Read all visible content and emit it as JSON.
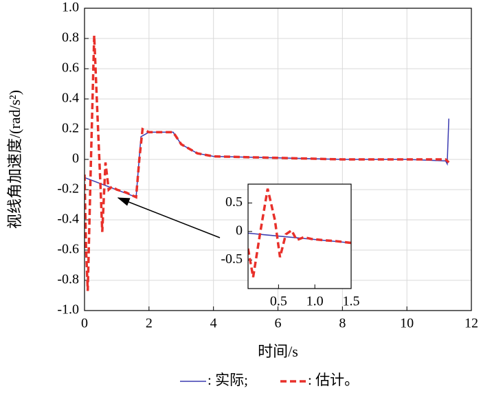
{
  "chart_data": [
    {
      "type": "line",
      "xlabel": "时间/s",
      "ylabel": "视线角加速度/(rad/s²)",
      "xlim": [
        0,
        12
      ],
      "ylim": [
        -1.0,
        1.0
      ],
      "xticks": [
        0,
        2,
        4,
        6,
        8,
        10,
        12
      ],
      "yticks": [
        {
          "value": -1.0,
          "label": "-1.0"
        },
        -0.8,
        -0.6,
        -0.4,
        -0.2,
        0,
        0.2,
        0.4,
        0.6,
        0.8,
        {
          "value": 1.0,
          "label": "1.0"
        }
      ],
      "grid": true,
      "legend": "bottom",
      "series": [
        {
          "name": ": 实际;",
          "color": "#3a3ab0",
          "style": "solid",
          "x": [
            0,
            1.6,
            1.75,
            2.0,
            2.75,
            3.0,
            3.5,
            4,
            6,
            8,
            10,
            11.2,
            11.25,
            11.3
          ],
          "values": [
            -0.12,
            -0.25,
            0.15,
            0.18,
            0.18,
            0.1,
            0.04,
            0.02,
            0.01,
            0.0,
            0.0,
            -0.01,
            -0.03,
            0.27
          ]
        },
        {
          "name": ": 估计。",
          "color": "#e8302a",
          "style": "dashed",
          "x": [
            0,
            0.05,
            0.1,
            0.2,
            0.3,
            0.4,
            0.5,
            0.55,
            0.65,
            0.75,
            0.85,
            1.0,
            1.3,
            1.6,
            1.7,
            1.8,
            2.0,
            2.75,
            3.0,
            3.5,
            4,
            6,
            8,
            10,
            11.2,
            11.3
          ],
          "values": [
            -0.1,
            -0.6,
            -0.87,
            0.0,
            0.82,
            0.3,
            -0.2,
            -0.48,
            -0.02,
            -0.2,
            -0.18,
            -0.2,
            -0.22,
            -0.25,
            0.0,
            0.2,
            0.18,
            0.18,
            0.1,
            0.04,
            0.02,
            0.01,
            0.0,
            0.0,
            0.0,
            -0.02
          ]
        }
      ]
    },
    {
      "type": "line",
      "xlim": [
        0.08,
        1.5
      ],
      "ylim": [
        -1.0,
        0.83
      ],
      "xticks": [
        0.5,
        {
          "value": 1.0,
          "label": "1.0"
        },
        1.5
      ],
      "yticks": [
        -0.5,
        0,
        0.5
      ],
      "grid": false,
      "series": [
        {
          "color": "#3a3ab0",
          "style": "solid",
          "x": [
            0.08,
            1.5
          ],
          "values": [
            -0.03,
            -0.2
          ]
        },
        {
          "color": "#e8302a",
          "style": "dashed",
          "x": [
            0.08,
            0.15,
            0.25,
            0.35,
            0.45,
            0.52,
            0.6,
            0.68,
            0.75,
            0.85,
            0.95,
            1.1,
            1.3,
            1.5
          ],
          "values": [
            -0.3,
            -0.8,
            0.0,
            0.75,
            0.2,
            -0.45,
            -0.05,
            0.02,
            -0.15,
            -0.1,
            -0.13,
            -0.15,
            -0.17,
            -0.2
          ]
        }
      ]
    }
  ]
}
